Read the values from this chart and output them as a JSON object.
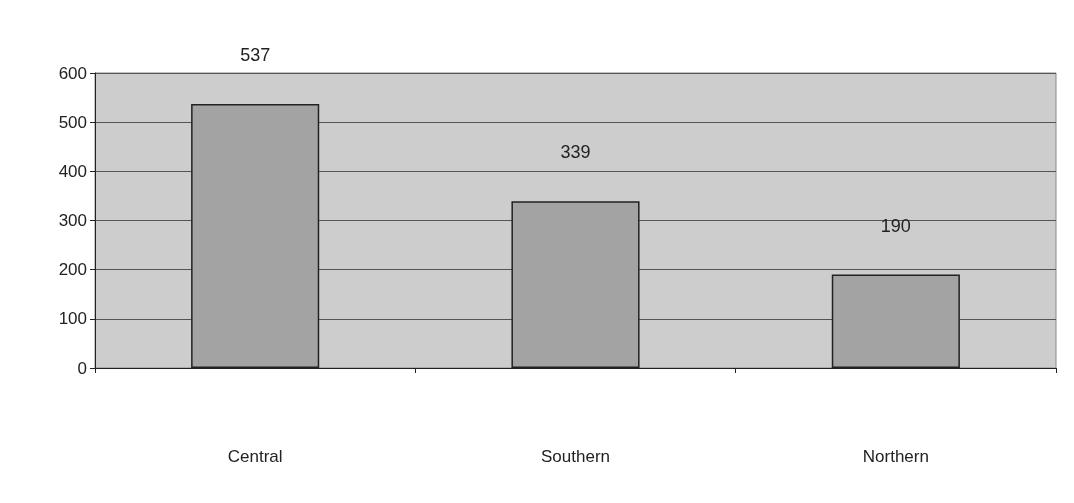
{
  "chart_data": {
    "type": "bar",
    "categories": [
      "Central",
      "Southern",
      "Northern"
    ],
    "values": [
      537,
      339,
      190
    ],
    "color": "#a3a3a3",
    "ylim": [
      0,
      600
    ],
    "yticks": [
      0,
      100,
      200,
      300,
      400,
      500,
      600
    ],
    "grid": "y",
    "data_labels": true
  }
}
